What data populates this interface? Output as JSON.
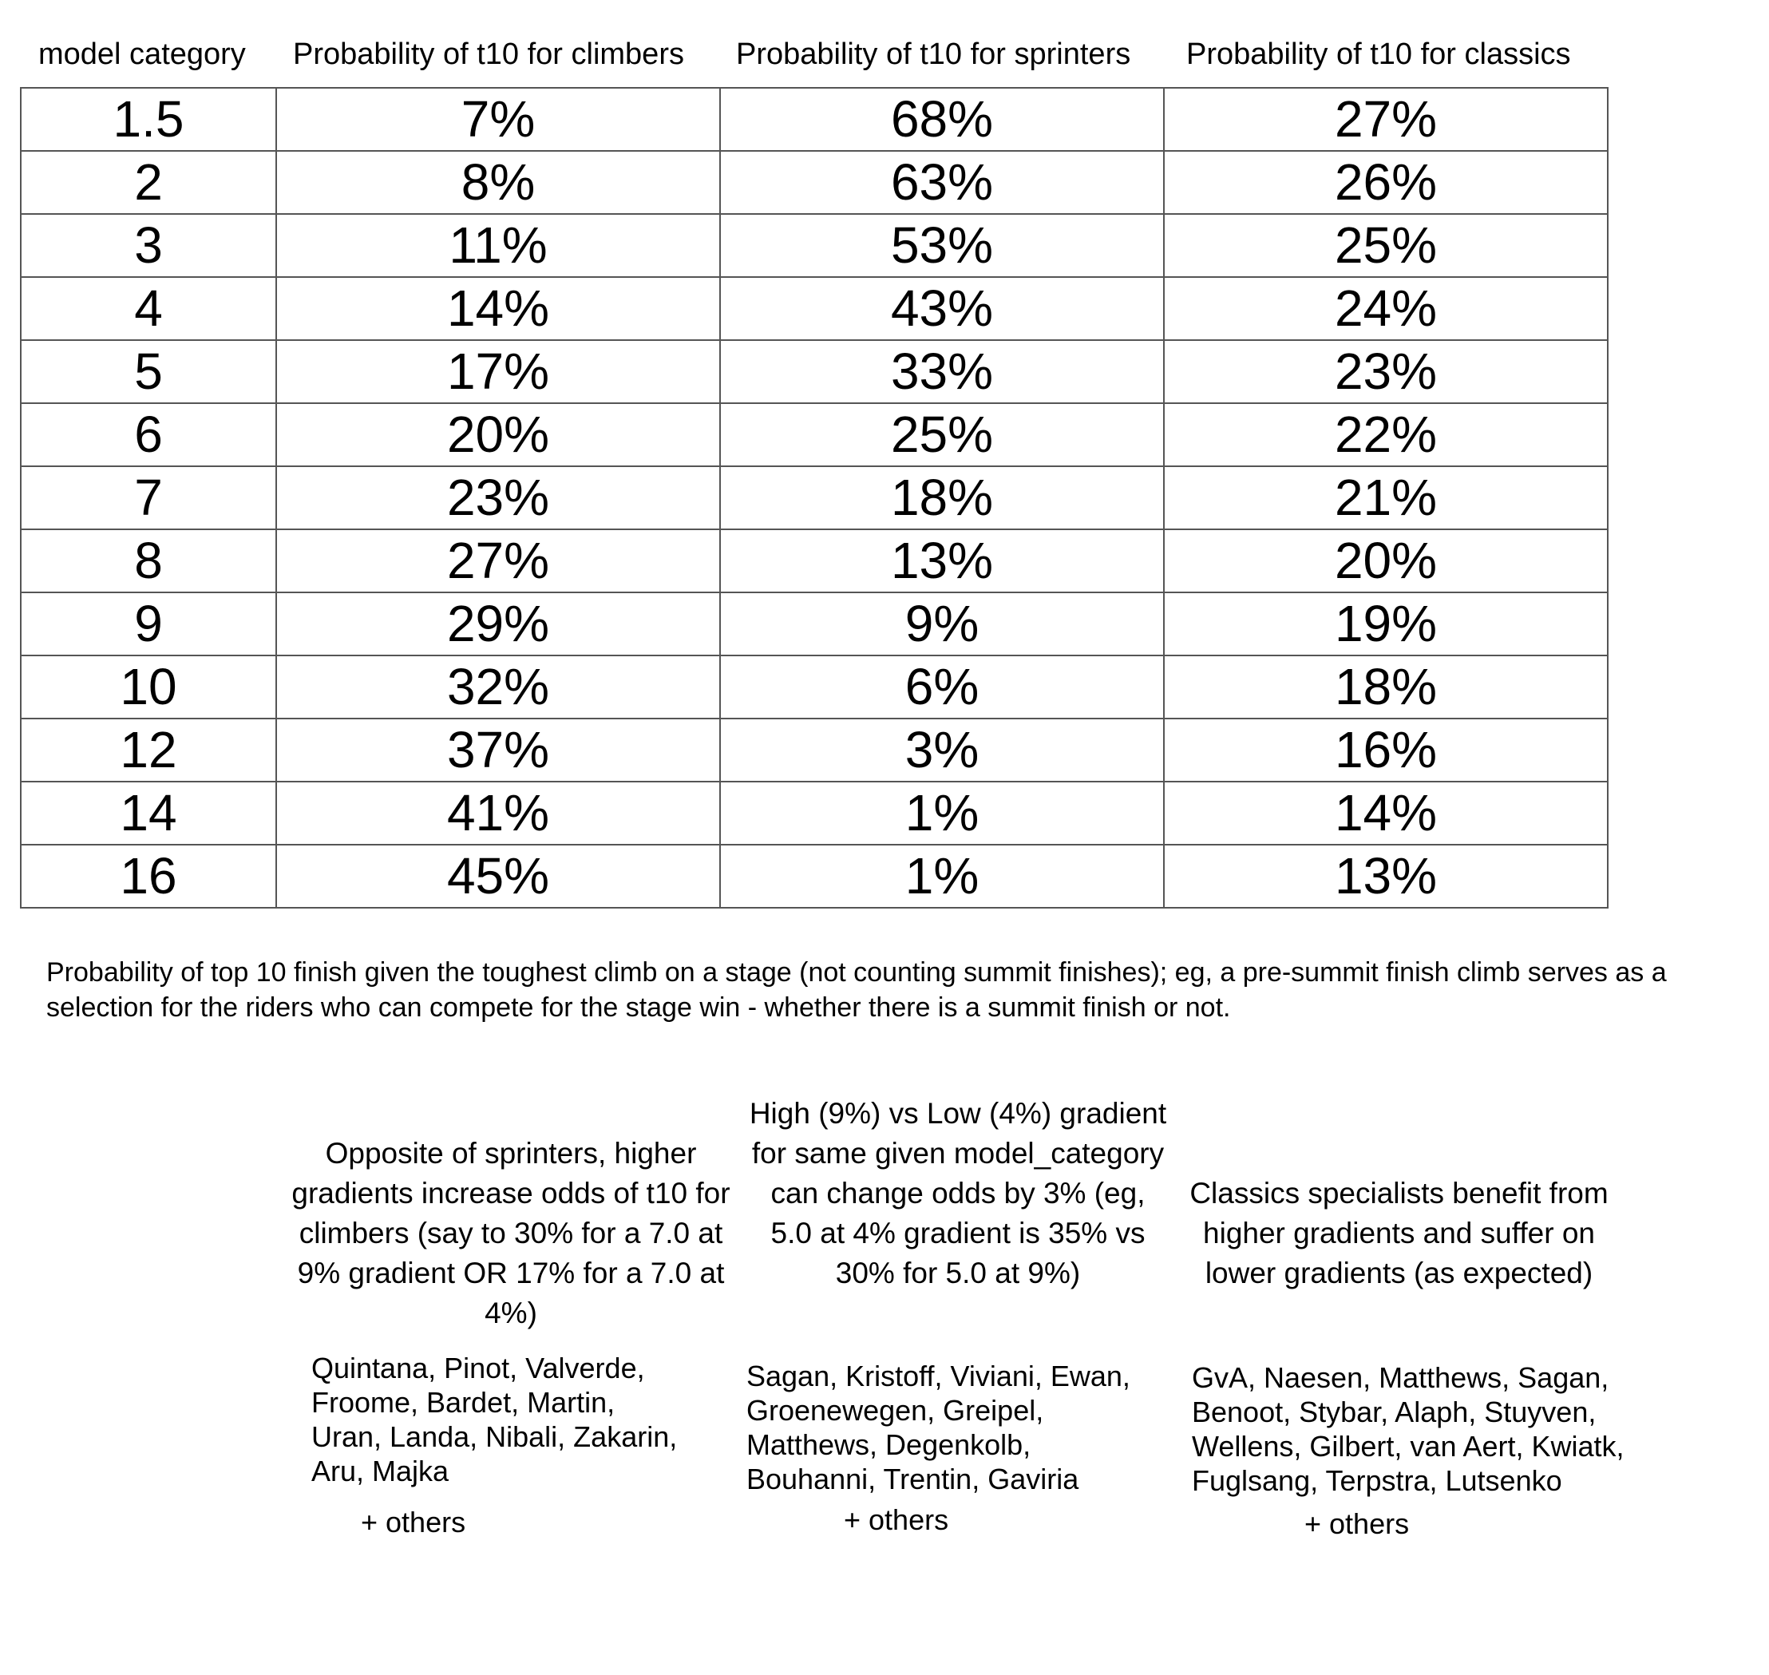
{
  "table": {
    "headers": [
      "model category",
      "Probability of t10 for climbers",
      "Probability of t10 for sprinters",
      "Probability of t10 for classics"
    ],
    "rows": [
      [
        "1.5",
        "7%",
        "68%",
        "27%"
      ],
      [
        "2",
        "8%",
        "63%",
        "26%"
      ],
      [
        "3",
        "11%",
        "53%",
        "25%"
      ],
      [
        "4",
        "14%",
        "43%",
        "24%"
      ],
      [
        "5",
        "17%",
        "33%",
        "23%"
      ],
      [
        "6",
        "20%",
        "25%",
        "22%"
      ],
      [
        "7",
        "23%",
        "18%",
        "21%"
      ],
      [
        "8",
        "27%",
        "13%",
        "20%"
      ],
      [
        "9",
        "29%",
        "9%",
        "19%"
      ],
      [
        "10",
        "32%",
        "6%",
        "18%"
      ],
      [
        "12",
        "37%",
        "3%",
        "16%"
      ],
      [
        "14",
        "41%",
        "1%",
        "14%"
      ],
      [
        "16",
        "45%",
        "1%",
        "13%"
      ]
    ]
  },
  "caption": "Probability of top 10 finish given the toughest climb on a stage (not counting summit finishes); eg, a pre-summit finish climb serves as a selection for the riders who can compete for the stage win - whether there is a summit finish or not.",
  "notes": {
    "climbers": "Opposite of sprinters, higher gradients increase odds of t10 for climbers (say to 30% for a 7.0 at 9% gradient OR 17% for a 7.0 at 4%)",
    "sprinters": "High (9%) vs Low (4%) gradient for same given model_category can change odds by 3% (eg, 5.0 at 4% gradient is 35% vs 30% for 5.0 at 9%)",
    "classics": "Classics specialists benefit from higher gradients and suffer on lower gradients (as expected)"
  },
  "riders": {
    "climbers": "Quintana, Pinot, Valverde, Froome, Bardet, Martin, Uran, Landa, Nibali, Zakarin, Aru, Majka",
    "sprinters": "Sagan, Kristoff, Viviani, Ewan, Groenewegen, Greipel, Matthews, Degenkolb, Bouhanni, Trentin, Gaviria",
    "classics": "GvA, Naesen, Matthews, Sagan, Benoot, Stybar, Alaph, Stuyven, Wellens, Gilbert, van Aert, Kwiatk, Fuglsang, Terpstra, Lutsenko"
  },
  "others_label": "+ others"
}
